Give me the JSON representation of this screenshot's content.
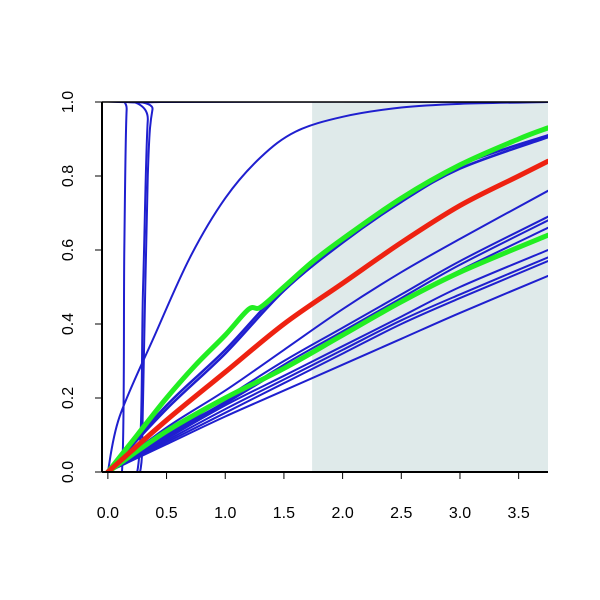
{
  "chart_data": {
    "type": "line",
    "title": "",
    "xlabel": "",
    "ylabel": "",
    "xlim": [
      -0.05,
      3.75
    ],
    "ylim": [
      0.0,
      1.0
    ],
    "grid": false,
    "legend": "none",
    "x_ticks": [
      "0.0",
      "0.5",
      "1.0",
      "1.5",
      "2.0",
      "2.5",
      "3.0",
      "3.5"
    ],
    "y_ticks": [
      "0.0",
      "0.2",
      "0.4",
      "0.6",
      "0.8",
      "1.0"
    ],
    "shaded_region": {
      "x_from": 1.74,
      "x_to": 3.75,
      "color": "#dfeaea"
    },
    "colors": {
      "blue": "#1f1fcf",
      "green": "#22ee22",
      "red": "#ee2211",
      "axis": "#000000"
    },
    "series": [
      {
        "color": "#1f1fcf",
        "width": 2,
        "points": [
          [
            0.0,
            0.0
          ],
          [
            0.12,
            0.0
          ],
          [
            0.14,
            0.6
          ],
          [
            0.16,
            0.98
          ],
          [
            0.2,
            1.0
          ],
          [
            3.75,
            1.0
          ]
        ]
      },
      {
        "color": "#1f1fcf",
        "width": 2,
        "points": [
          [
            0.0,
            0.0
          ],
          [
            0.25,
            0.0
          ],
          [
            0.3,
            0.5
          ],
          [
            0.34,
            0.95
          ],
          [
            0.4,
            1.0
          ],
          [
            3.75,
            1.0
          ]
        ]
      },
      {
        "color": "#1f1fcf",
        "width": 2,
        "points": [
          [
            0.0,
            0.0
          ],
          [
            0.2,
            0.0
          ],
          [
            0.28,
            0.01
          ],
          [
            0.3,
            0.2
          ],
          [
            0.34,
            0.8
          ],
          [
            0.38,
            0.98
          ],
          [
            0.45,
            1.0
          ],
          [
            3.75,
            1.0
          ]
        ]
      },
      {
        "color": "#1f1fcf",
        "width": 2,
        "points": [
          [
            0.0,
            0.0
          ],
          [
            0.1,
            0.15
          ],
          [
            0.4,
            0.37
          ],
          [
            0.7,
            0.58
          ],
          [
            1.0,
            0.74
          ],
          [
            1.3,
            0.85
          ],
          [
            1.6,
            0.92
          ],
          [
            2.0,
            0.96
          ],
          [
            2.5,
            0.985
          ],
          [
            3.0,
            0.995
          ],
          [
            3.75,
            1.0
          ]
        ]
      },
      {
        "color": "#1f1fcf",
        "width": 2.5,
        "points": [
          [
            0.0,
            0.0
          ],
          [
            0.5,
            0.18
          ],
          [
            1.0,
            0.33
          ],
          [
            1.5,
            0.5
          ],
          [
            2.0,
            0.63
          ],
          [
            2.5,
            0.74
          ],
          [
            3.0,
            0.83
          ],
          [
            3.75,
            0.91
          ]
        ]
      },
      {
        "color": "#1f1fcf",
        "width": 2.5,
        "points": [
          [
            0.0,
            0.0
          ],
          [
            0.5,
            0.17
          ],
          [
            1.0,
            0.32
          ],
          [
            1.5,
            0.49
          ],
          [
            2.0,
            0.62
          ],
          [
            2.5,
            0.73
          ],
          [
            3.0,
            0.82
          ],
          [
            3.75,
            0.905
          ]
        ]
      },
      {
        "color": "#1f1fcf",
        "width": 2,
        "points": [
          [
            0.0,
            0.0
          ],
          [
            0.5,
            0.12
          ],
          [
            1.0,
            0.22
          ],
          [
            1.5,
            0.33
          ],
          [
            2.0,
            0.44
          ],
          [
            2.5,
            0.54
          ],
          [
            3.0,
            0.63
          ],
          [
            3.75,
            0.76
          ]
        ]
      },
      {
        "color": "#1f1fcf",
        "width": 2,
        "points": [
          [
            0.0,
            0.0
          ],
          [
            0.5,
            0.1
          ],
          [
            1.0,
            0.2
          ],
          [
            1.5,
            0.3
          ],
          [
            2.0,
            0.39
          ],
          [
            2.5,
            0.48
          ],
          [
            3.0,
            0.57
          ],
          [
            3.75,
            0.69
          ]
        ]
      },
      {
        "color": "#1f1fcf",
        "width": 2,
        "points": [
          [
            0.0,
            0.0
          ],
          [
            0.5,
            0.1
          ],
          [
            1.0,
            0.19
          ],
          [
            1.5,
            0.29
          ],
          [
            2.0,
            0.38
          ],
          [
            2.5,
            0.47
          ],
          [
            3.0,
            0.56
          ],
          [
            3.75,
            0.68
          ]
        ]
      },
      {
        "color": "#1f1fcf",
        "width": 2,
        "points": [
          [
            0.0,
            0.0
          ],
          [
            0.5,
            0.095
          ],
          [
            1.0,
            0.185
          ],
          [
            1.5,
            0.28
          ],
          [
            2.0,
            0.37
          ],
          [
            2.5,
            0.46
          ],
          [
            3.0,
            0.545
          ],
          [
            3.75,
            0.66
          ]
        ]
      },
      {
        "color": "#1f1fcf",
        "width": 2,
        "points": [
          [
            0.0,
            0.0
          ],
          [
            0.5,
            0.09
          ],
          [
            1.0,
            0.18
          ],
          [
            1.5,
            0.26
          ],
          [
            2.0,
            0.34
          ],
          [
            2.5,
            0.42
          ],
          [
            3.0,
            0.5
          ],
          [
            3.75,
            0.6
          ]
        ]
      },
      {
        "color": "#1f1fcf",
        "width": 2,
        "points": [
          [
            0.0,
            0.0
          ],
          [
            0.5,
            0.085
          ],
          [
            1.0,
            0.17
          ],
          [
            1.5,
            0.25
          ],
          [
            2.0,
            0.33
          ],
          [
            2.5,
            0.41
          ],
          [
            3.0,
            0.48
          ],
          [
            3.75,
            0.58
          ]
        ]
      },
      {
        "color": "#1f1fcf",
        "width": 2,
        "points": [
          [
            0.0,
            0.0
          ],
          [
            0.5,
            0.08
          ],
          [
            1.0,
            0.16
          ],
          [
            1.5,
            0.24
          ],
          [
            2.0,
            0.32
          ],
          [
            2.5,
            0.4
          ],
          [
            3.0,
            0.47
          ],
          [
            3.75,
            0.57
          ]
        ]
      },
      {
        "color": "#1f1fcf",
        "width": 2,
        "points": [
          [
            0.0,
            0.0
          ],
          [
            0.5,
            0.075
          ],
          [
            1.0,
            0.15
          ],
          [
            1.5,
            0.22
          ],
          [
            2.0,
            0.29
          ],
          [
            2.5,
            0.36
          ],
          [
            3.0,
            0.43
          ],
          [
            3.75,
            0.53
          ]
        ]
      },
      {
        "color": "#22ee22",
        "width": 5,
        "points": [
          [
            0.0,
            0.0
          ],
          [
            0.25,
            0.1
          ],
          [
            0.5,
            0.2
          ],
          [
            0.75,
            0.29
          ],
          [
            1.0,
            0.37
          ],
          [
            1.2,
            0.44
          ],
          [
            1.3,
            0.445
          ],
          [
            1.5,
            0.5
          ],
          [
            1.75,
            0.57
          ],
          [
            2.0,
            0.63
          ],
          [
            2.5,
            0.74
          ],
          [
            3.0,
            0.83
          ],
          [
            3.5,
            0.9
          ],
          [
            3.75,
            0.93
          ]
        ]
      },
      {
        "color": "#22ee22",
        "width": 5,
        "points": [
          [
            0.0,
            0.0
          ],
          [
            0.5,
            0.11
          ],
          [
            1.0,
            0.2
          ],
          [
            1.5,
            0.28
          ],
          [
            2.0,
            0.37
          ],
          [
            2.5,
            0.46
          ],
          [
            3.0,
            0.54
          ],
          [
            3.75,
            0.64
          ]
        ]
      },
      {
        "color": "#ee2211",
        "width": 5,
        "points": [
          [
            0.0,
            0.0
          ],
          [
            0.5,
            0.14
          ],
          [
            1.0,
            0.27
          ],
          [
            1.5,
            0.4
          ],
          [
            2.0,
            0.51
          ],
          [
            2.5,
            0.62
          ],
          [
            3.0,
            0.72
          ],
          [
            3.5,
            0.8
          ],
          [
            3.75,
            0.84
          ]
        ]
      }
    ]
  }
}
